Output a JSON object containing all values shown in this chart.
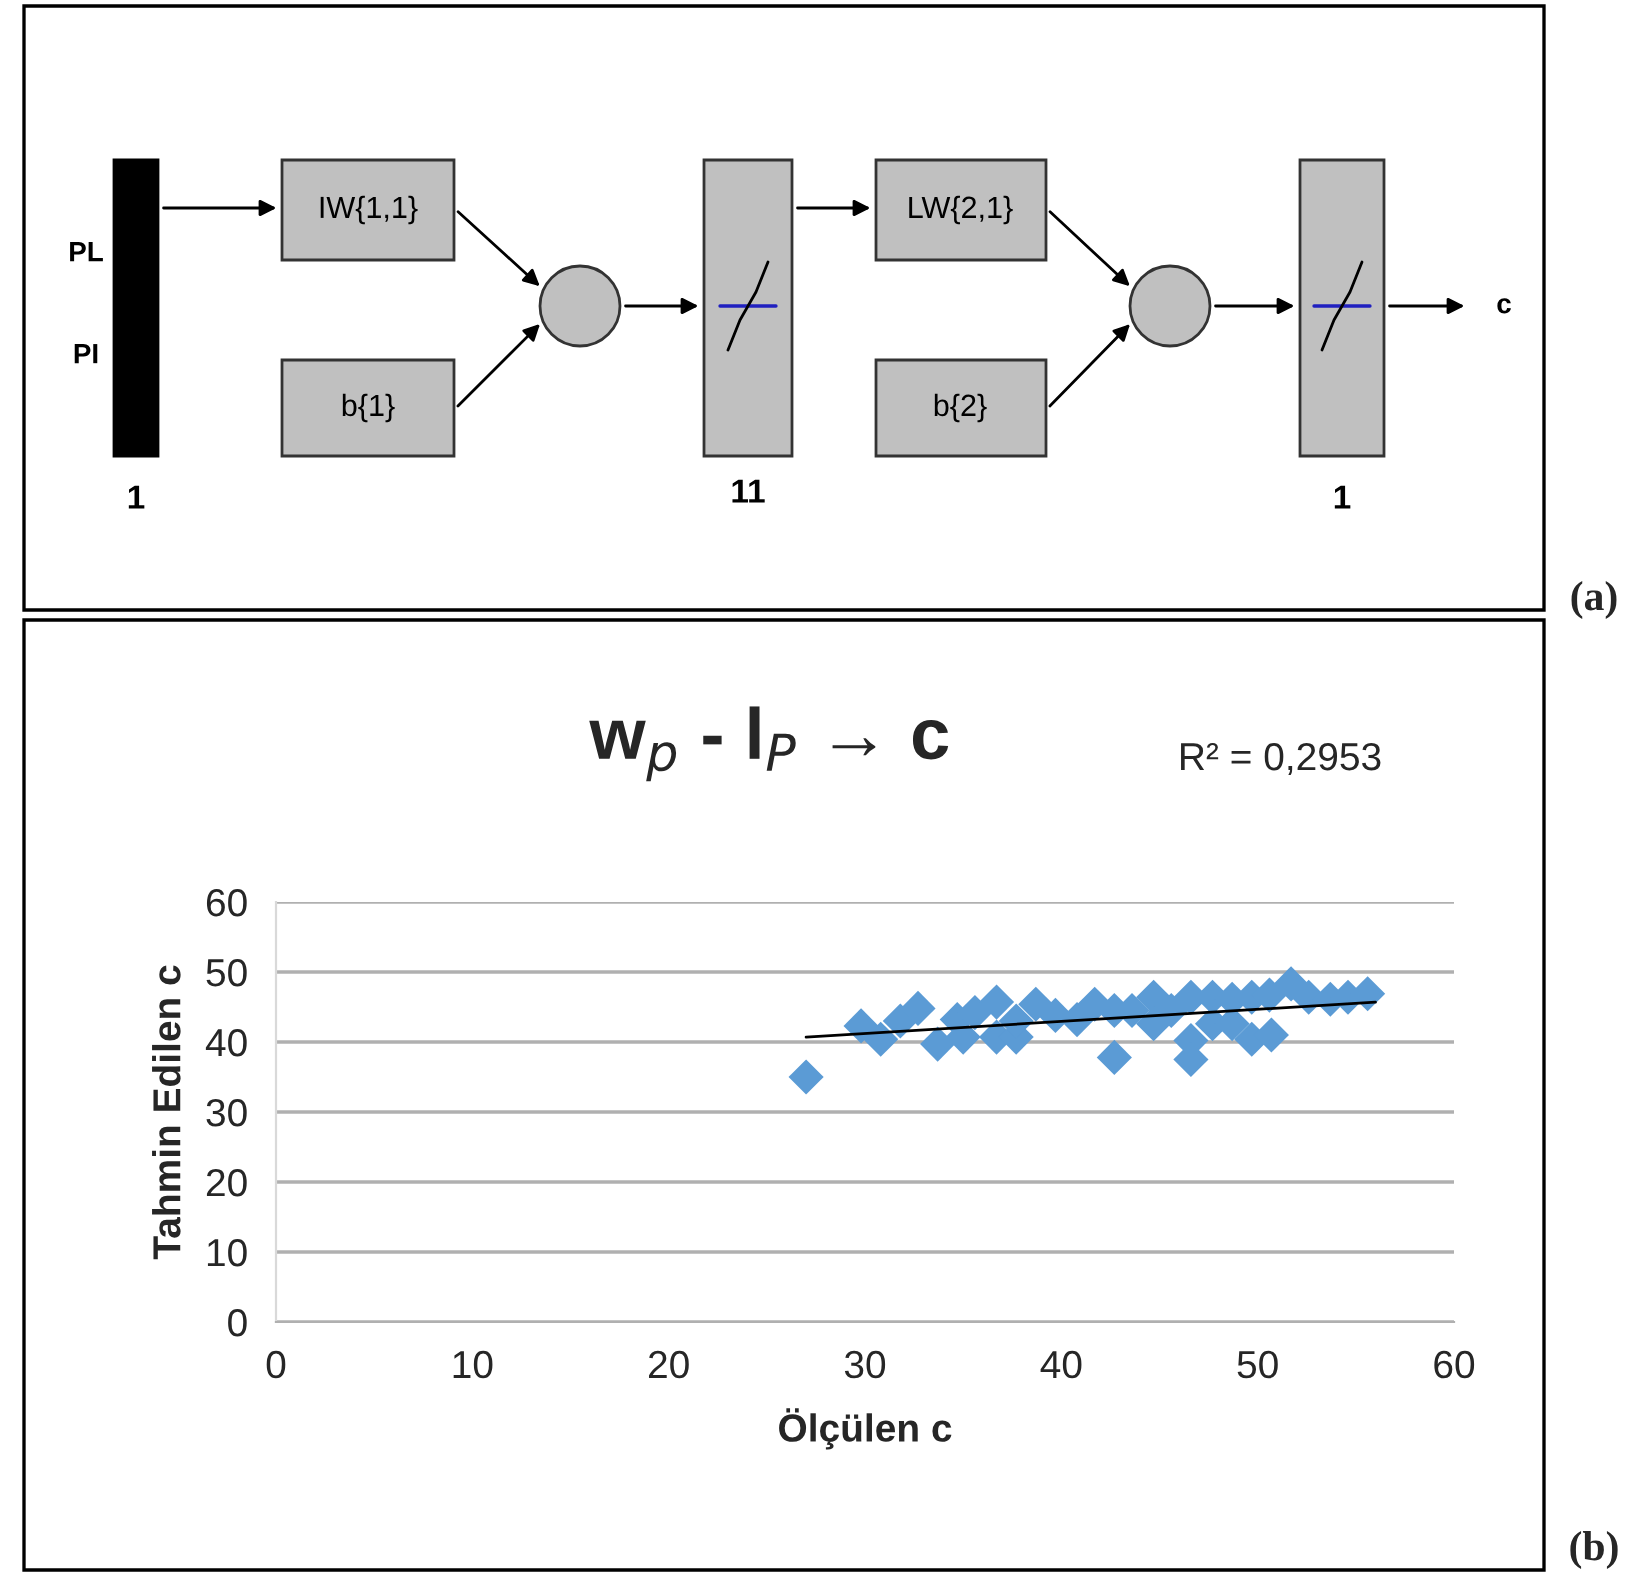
{
  "chart_data": [
    {
      "type": "other",
      "annotations": [
        "PL",
        "PI",
        "1",
        "IW{1,1}",
        "b{1}",
        "11",
        "LW{2,1}",
        "b{2}",
        "1",
        "c",
        "(a)"
      ]
    },
    {
      "type": "scatter",
      "title": "w$_{p}$ - l$_{P}$ → c",
      "xlabel": "Ölçülen c",
      "ylabel": "Tahmin Edilen c",
      "xlim": [
        0,
        60
      ],
      "xticks": [
        0,
        10,
        20,
        30,
        40,
        50,
        60
      ],
      "ylim": [
        0,
        60
      ],
      "yticks": [
        0,
        10,
        20,
        30,
        40,
        50,
        60
      ],
      "grid": "y",
      "series": [
        {
          "type": "scatter",
          "marker": "diamond",
          "color": "#5b9bd5",
          "x": [
            27,
            29.8,
            30.8,
            31.8,
            32.7,
            33.7,
            34.7,
            35,
            35.6,
            36.7,
            36.7,
            37.7,
            37.7,
            38.7,
            39.7,
            40.8,
            41.7,
            42.7,
            42.7,
            43.6,
            44.7,
            44.7,
            45.6,
            46.6,
            46.6,
            46.6,
            47.7,
            47.7,
            48.7,
            48.7,
            49.7,
            49.7,
            50.6,
            50.7,
            51.7,
            52.6,
            53.7,
            54.6,
            55.6
          ],
          "values": [
            35,
            42.3,
            40.4,
            43,
            44.8,
            39.7,
            43.2,
            40.7,
            44.2,
            45.7,
            40.7,
            40.7,
            43,
            45.4,
            43.8,
            43.2,
            45.4,
            44.5,
            37.8,
            44.5,
            46.4,
            42.6,
            44.5,
            46.4,
            40.2,
            37.5,
            46.4,
            42.6,
            46.1,
            42.6,
            46.4,
            40.4,
            46.7,
            41,
            48.3,
            46.4,
            46.1,
            46.4,
            46.9
          ]
        },
        {
          "type": "line",
          "color": "#000000",
          "line_style": "solid",
          "x": [
            27,
            56
          ],
          "values": [
            40.7,
            45.7
          ]
        }
      ],
      "annotations": [
        "R² = 0,2953",
        "(b)"
      ]
    }
  ]
}
